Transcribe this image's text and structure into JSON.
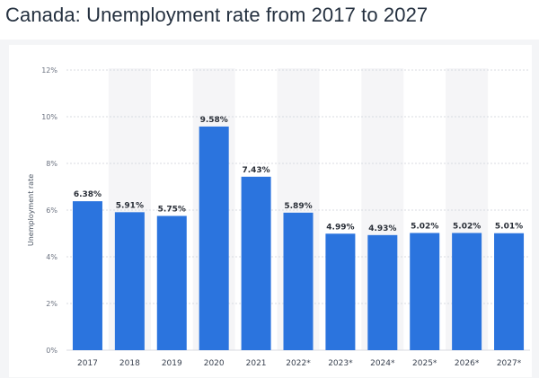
{
  "page": {
    "title": "Canada: Unemployment rate from 2017 to 2027"
  },
  "colors": {
    "bar": "#2b74de",
    "band": "#f5f5f7",
    "grid": "#d8dbe0",
    "panel": "#f4f5f7"
  },
  "chart_data": {
    "type": "bar",
    "title": "Canada: Unemployment rate from 2017 to 2027",
    "xlabel": "",
    "ylabel": "Unemployment rate",
    "ylim": [
      0,
      12
    ],
    "yticks": [
      "0%",
      "2%",
      "4%",
      "6%",
      "8%",
      "10%",
      "12%"
    ],
    "grid": true,
    "categories": [
      "2017",
      "2018",
      "2019",
      "2020",
      "2021",
      "2022*",
      "2023*",
      "2024*",
      "2025*",
      "2026*",
      "2027*"
    ],
    "values": [
      6.38,
      5.91,
      5.75,
      9.58,
      7.43,
      5.89,
      4.99,
      4.93,
      5.02,
      5.02,
      5.01
    ],
    "data_labels": [
      "6.38%",
      "5.91%",
      "5.75%",
      "9.58%",
      "7.43%",
      "5.89%",
      "4.99%",
      "4.93%",
      "5.02%",
      "5.02%",
      "5.01%"
    ]
  }
}
